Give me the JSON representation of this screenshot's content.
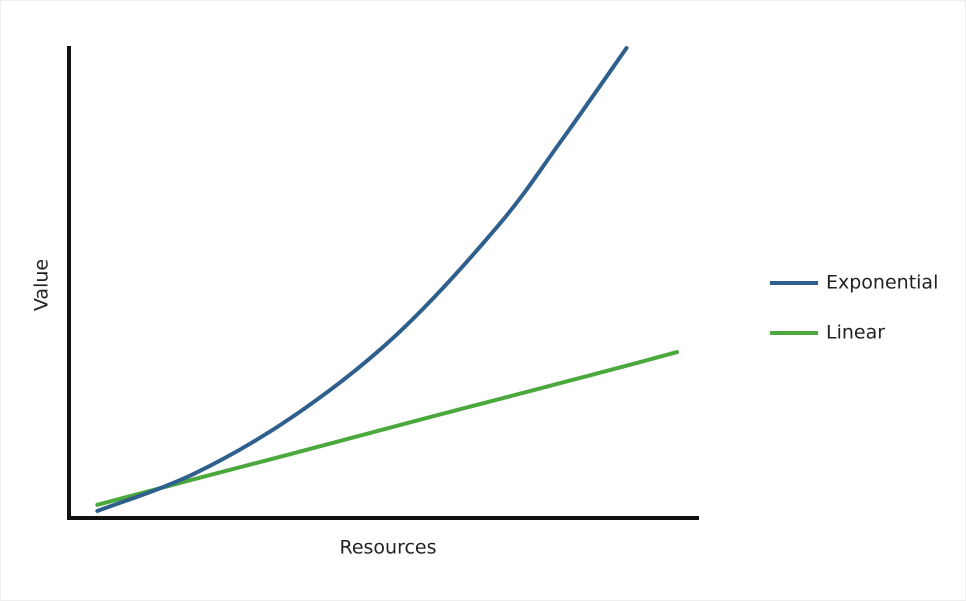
{
  "chart_data": {
    "type": "line",
    "x_label": "Resources",
    "y_label": "Value",
    "x": [
      4.5,
      20,
      36,
      52,
      68,
      78,
      88.5,
      96.5
    ],
    "series": [
      {
        "name": "Exponential",
        "color": "#2f5f8c",
        "values": [
          1.5,
          9.5,
          22,
          39,
          62,
          80,
          100,
          null
        ]
      },
      {
        "name": "Linear",
        "color": "#4aa83c",
        "values": [
          2.8,
          8.3,
          13.9,
          19.6,
          25.2,
          28.7,
          32.4,
          35.3
        ]
      }
    ],
    "xlim": [
      0,
      100
    ],
    "ylim": [
      0,
      100
    ],
    "grid": false,
    "legend": "right"
  }
}
